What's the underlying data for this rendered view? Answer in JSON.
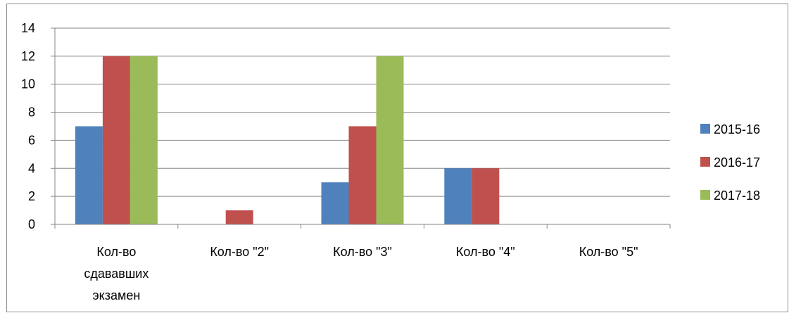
{
  "chart_data": {
    "type": "bar",
    "title": "",
    "xlabel": "",
    "ylabel": "",
    "ylim": [
      0,
      14
    ],
    "yticks": [
      0,
      2,
      4,
      6,
      8,
      10,
      12,
      14
    ],
    "grid": true,
    "legend_position": "right",
    "categories": [
      "Кол-во сдававших экзамен",
      "Кол-во \"2\"",
      "Кол-во \"3\"",
      "Кол-во \"4\"",
      "Кол-во \"5\""
    ],
    "category_lines": [
      [
        "Кол-во",
        "сдававших",
        "экзамен"
      ],
      [
        "Кол-во \"2\""
      ],
      [
        "Кол-во \"3\""
      ],
      [
        "Кол-во \"4\""
      ],
      [
        "Кол-во \"5\""
      ]
    ],
    "series": [
      {
        "name": "2015-16",
        "color": "#4f81bd",
        "values": [
          7,
          0,
          3,
          4,
          0
        ]
      },
      {
        "name": "2016-17",
        "color": "#c0504d",
        "values": [
          12,
          1,
          7,
          4,
          0
        ]
      },
      {
        "name": "2017-18",
        "color": "#9bbb59",
        "values": [
          12,
          0,
          12,
          0,
          0
        ]
      }
    ]
  }
}
